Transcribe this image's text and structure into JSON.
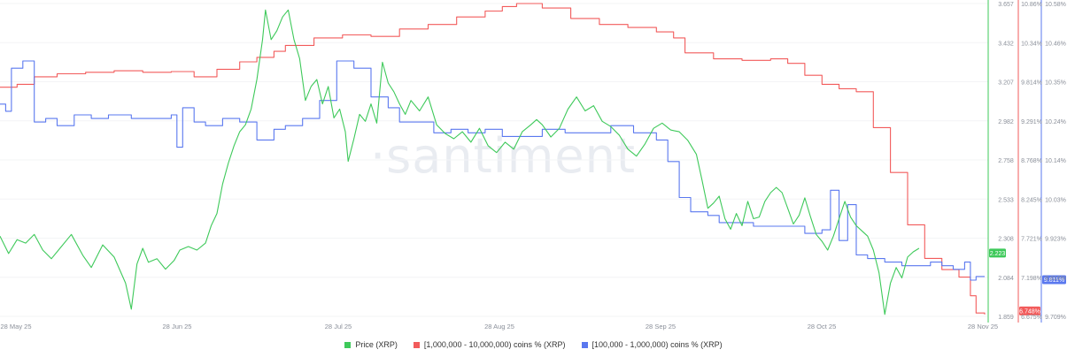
{
  "watermark": "·santiment",
  "legend": {
    "price": "Price (XRP)",
    "big": "[1,000,000 - 10,000,000) coins % (XRP)",
    "mid": "[100,000 - 1,000,000) coins % (XRP)"
  },
  "colors": {
    "price": "#3ec95a",
    "big": "#f25b5b",
    "mid": "#5a78ef",
    "axis": "#8a8f99"
  },
  "chart_data": {
    "type": "line",
    "x_ticks": [
      "28 May 25",
      "28 Jun 25",
      "28 Jul 25",
      "28 Aug 25",
      "28 Sep 25",
      "28 Oct 25",
      "28 Nov 25"
    ],
    "price_axis": {
      "ticks": [
        "3.657",
        "3.432",
        "3.207",
        "2.982",
        "2.758",
        "2.533",
        "2.308",
        "2.084",
        "1.859"
      ],
      "range": [
        1.859,
        3.657
      ]
    },
    "big_axis": {
      "ticks": [
        "10.86%",
        "10.34%",
        "9.814%",
        "9.291%",
        "8.768%",
        "8.245%",
        "7.721%",
        "7.198%",
        "6.675%"
      ],
      "range": [
        6.675,
        10.86
      ]
    },
    "mid_axis": {
      "ticks": [
        "10.58%",
        "10.46%",
        "10.35%",
        "10.24%",
        "10.14%",
        "10.03%",
        "9.923%",
        "9.816%",
        "9.709%"
      ],
      "range": [
        9.709,
        10.58
      ]
    },
    "series": [
      {
        "name": "Price (XRP)",
        "axis": "price",
        "points": [
          [
            0,
            2.32
          ],
          [
            3,
            2.22
          ],
          [
            6,
            2.3
          ],
          [
            9,
            2.28
          ],
          [
            12,
            2.33
          ],
          [
            15,
            2.24
          ],
          [
            18,
            2.19
          ],
          [
            21,
            2.25
          ],
          [
            25,
            2.33
          ],
          [
            29,
            2.21
          ],
          [
            32,
            2.14
          ],
          [
            36,
            2.27
          ],
          [
            40,
            2.2
          ],
          [
            44,
            2.05
          ],
          [
            46,
            1.9
          ],
          [
            48,
            2.16
          ],
          [
            50,
            2.25
          ],
          [
            52,
            2.17
          ],
          [
            55,
            2.19
          ],
          [
            58,
            2.13
          ],
          [
            61,
            2.18
          ],
          [
            63,
            2.24
          ],
          [
            66,
            2.26
          ],
          [
            69,
            2.24
          ],
          [
            72,
            2.28
          ],
          [
            74,
            2.38
          ],
          [
            76,
            2.45
          ],
          [
            78,
            2.62
          ],
          [
            80,
            2.74
          ],
          [
            82,
            2.84
          ],
          [
            84,
            2.92
          ],
          [
            86,
            2.96
          ],
          [
            88,
            3.05
          ],
          [
            90,
            3.22
          ],
          [
            92,
            3.45
          ],
          [
            93,
            3.62
          ],
          [
            95,
            3.45
          ],
          [
            97,
            3.5
          ],
          [
            99,
            3.58
          ],
          [
            101,
            3.62
          ],
          [
            103,
            3.45
          ],
          [
            105,
            3.34
          ],
          [
            107,
            3.1
          ],
          [
            109,
            3.18
          ],
          [
            111,
            3.22
          ],
          [
            113,
            3.08
          ],
          [
            115,
            3.18
          ],
          [
            117,
            3.0
          ],
          [
            119,
            3.05
          ],
          [
            121,
            2.92
          ],
          [
            122,
            2.75
          ],
          [
            124,
            2.88
          ],
          [
            126,
            3.02
          ],
          [
            128,
            2.98
          ],
          [
            130,
            3.08
          ],
          [
            132,
            2.97
          ],
          [
            134,
            3.32
          ],
          [
            136,
            3.2
          ],
          [
            138,
            3.15
          ],
          [
            140,
            3.08
          ],
          [
            142,
            3.02
          ],
          [
            144,
            3.1
          ],
          [
            147,
            3.04
          ],
          [
            150,
            3.12
          ],
          [
            153,
            2.96
          ],
          [
            156,
            2.91
          ],
          [
            159,
            2.88
          ],
          [
            162,
            2.92
          ],
          [
            165,
            2.86
          ],
          [
            168,
            2.94
          ],
          [
            171,
            2.84
          ],
          [
            174,
            2.8
          ],
          [
            177,
            2.86
          ],
          [
            180,
            2.82
          ],
          [
            183,
            2.92
          ],
          [
            186,
            2.96
          ],
          [
            188,
            2.99
          ],
          [
            190,
            2.96
          ],
          [
            193,
            2.89
          ],
          [
            196,
            2.94
          ],
          [
            199,
            3.05
          ],
          [
            202,
            3.12
          ],
          [
            205,
            3.04
          ],
          [
            208,
            3.07
          ],
          [
            211,
            2.98
          ],
          [
            214,
            2.95
          ],
          [
            217,
            2.9
          ],
          [
            220,
            2.82
          ],
          [
            223,
            2.78
          ],
          [
            226,
            2.85
          ],
          [
            229,
            2.94
          ],
          [
            232,
            2.97
          ],
          [
            235,
            2.93
          ],
          [
            238,
            2.92
          ],
          [
            241,
            2.87
          ],
          [
            244,
            2.79
          ],
          [
            246,
            2.64
          ],
          [
            248,
            2.48
          ],
          [
            250,
            2.51
          ],
          [
            252,
            2.55
          ],
          [
            254,
            2.42
          ],
          [
            256,
            2.36
          ],
          [
            258,
            2.45
          ],
          [
            260,
            2.38
          ],
          [
            262,
            2.52
          ],
          [
            264,
            2.42
          ],
          [
            266,
            2.43
          ],
          [
            268,
            2.52
          ],
          [
            270,
            2.57
          ],
          [
            272,
            2.6
          ],
          [
            274,
            2.57
          ],
          [
            276,
            2.48
          ],
          [
            278,
            2.39
          ],
          [
            280,
            2.44
          ],
          [
            282,
            2.54
          ],
          [
            284,
            2.43
          ],
          [
            286,
            2.33
          ],
          [
            288,
            2.29
          ],
          [
            290,
            2.24
          ],
          [
            292,
            2.32
          ],
          [
            294,
            2.42
          ],
          [
            296,
            2.52
          ],
          [
            298,
            2.43
          ],
          [
            300,
            2.38
          ],
          [
            302,
            2.35
          ],
          [
            304,
            2.32
          ],
          [
            306,
            2.24
          ],
          [
            308,
            2.11
          ],
          [
            310,
            1.87
          ],
          [
            312,
            2.05
          ],
          [
            314,
            2.14
          ],
          [
            316,
            2.08
          ],
          [
            318,
            2.2
          ],
          [
            320,
            2.23
          ],
          [
            322,
            2.25
          ]
        ]
      },
      {
        "name": "[1,000,000 - 10,000,000) coins % (XRP)",
        "axis": "big",
        "points": [
          [
            0,
            9.74
          ],
          [
            6,
            9.78
          ],
          [
            12,
            9.88
          ],
          [
            20,
            9.92
          ],
          [
            30,
            9.94
          ],
          [
            40,
            9.96
          ],
          [
            50,
            9.94
          ],
          [
            60,
            9.95
          ],
          [
            68,
            9.88
          ],
          [
            76,
            9.98
          ],
          [
            84,
            10.08
          ],
          [
            90,
            10.14
          ],
          [
            96,
            10.22
          ],
          [
            100,
            10.3
          ],
          [
            110,
            10.4
          ],
          [
            120,
            10.44
          ],
          [
            130,
            10.42
          ],
          [
            140,
            10.52
          ],
          [
            150,
            10.58
          ],
          [
            160,
            10.68
          ],
          [
            170,
            10.76
          ],
          [
            176,
            10.82
          ],
          [
            181,
            10.86
          ],
          [
            190,
            10.8
          ],
          [
            200,
            10.66
          ],
          [
            210,
            10.58
          ],
          [
            220,
            10.54
          ],
          [
            230,
            10.48
          ],
          [
            236,
            10.4
          ],
          [
            240,
            10.2
          ],
          [
            250,
            10.12
          ],
          [
            260,
            10.1
          ],
          [
            270,
            10.12
          ],
          [
            276,
            10.06
          ],
          [
            282,
            9.9
          ],
          [
            288,
            9.78
          ],
          [
            294,
            9.72
          ],
          [
            300,
            9.68
          ],
          [
            306,
            9.2
          ],
          [
            312,
            8.6
          ],
          [
            318,
            7.9
          ],
          [
            324,
            7.45
          ],
          [
            330,
            7.3
          ],
          [
            336,
            7.2
          ],
          [
            340,
            6.95
          ],
          [
            342,
            6.72
          ],
          [
            345,
            6.7
          ]
        ]
      },
      {
        "name": "[100,000 - 1,000,000) coins % (XRP)",
        "axis": "mid",
        "points": [
          [
            0,
            10.3
          ],
          [
            2,
            10.28
          ],
          [
            4,
            10.4
          ],
          [
            8,
            10.42
          ],
          [
            12,
            10.25
          ],
          [
            16,
            10.26
          ],
          [
            20,
            10.24
          ],
          [
            26,
            10.27
          ],
          [
            32,
            10.26
          ],
          [
            38,
            10.27
          ],
          [
            46,
            10.26
          ],
          [
            54,
            10.26
          ],
          [
            60,
            10.27
          ],
          [
            62,
            10.18
          ],
          [
            64,
            10.29
          ],
          [
            68,
            10.25
          ],
          [
            72,
            10.24
          ],
          [
            78,
            10.26
          ],
          [
            84,
            10.25
          ],
          [
            90,
            10.2
          ],
          [
            96,
            10.23
          ],
          [
            100,
            10.24
          ],
          [
            106,
            10.26
          ],
          [
            112,
            10.31
          ],
          [
            118,
            10.42
          ],
          [
            124,
            10.4
          ],
          [
            130,
            10.32
          ],
          [
            136,
            10.29
          ],
          [
            140,
            10.25
          ],
          [
            146,
            10.25
          ],
          [
            152,
            10.22
          ],
          [
            158,
            10.23
          ],
          [
            164,
            10.22
          ],
          [
            170,
            10.23
          ],
          [
            176,
            10.21
          ],
          [
            182,
            10.21
          ],
          [
            190,
            10.23
          ],
          [
            198,
            10.22
          ],
          [
            206,
            10.22
          ],
          [
            214,
            10.24
          ],
          [
            222,
            10.22
          ],
          [
            230,
            10.2
          ],
          [
            234,
            10.14
          ],
          [
            238,
            10.04
          ],
          [
            242,
            10.0
          ],
          [
            248,
            9.99
          ],
          [
            252,
            9.97
          ],
          [
            258,
            9.97
          ],
          [
            264,
            9.96
          ],
          [
            270,
            9.96
          ],
          [
            276,
            9.96
          ],
          [
            282,
            9.94
          ],
          [
            288,
            9.95
          ],
          [
            291,
            10.06
          ],
          [
            294,
            9.92
          ],
          [
            297,
            10.02
          ],
          [
            300,
            9.88
          ],
          [
            304,
            9.87
          ],
          [
            310,
            9.86
          ],
          [
            316,
            9.85
          ],
          [
            322,
            9.85
          ],
          [
            326,
            9.86
          ],
          [
            330,
            9.85
          ],
          [
            334,
            9.84
          ],
          [
            338,
            9.86
          ],
          [
            340,
            9.81
          ],
          [
            342,
            9.82
          ],
          [
            345,
            9.82
          ]
        ]
      }
    ],
    "last_values": {
      "price": "2.223",
      "big": "6.748%",
      "mid": "9.811%"
    }
  }
}
